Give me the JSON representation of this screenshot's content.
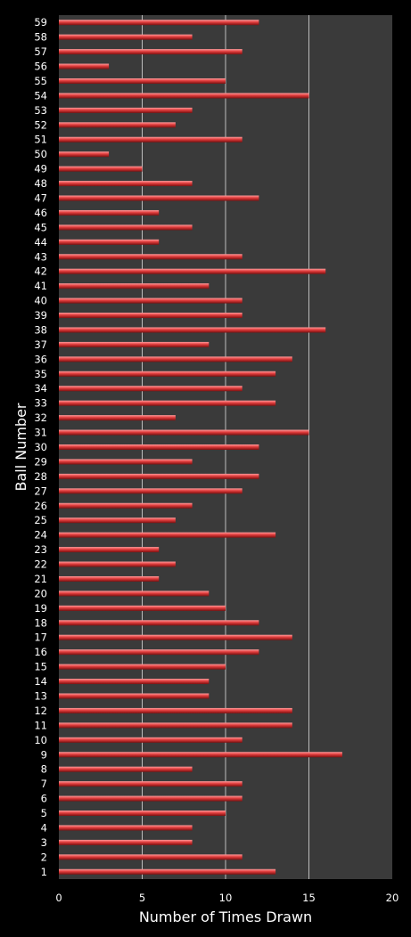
{
  "chart_data": {
    "type": "bar",
    "orientation": "horizontal",
    "title": "",
    "xlabel": "Number of Times Drawn",
    "ylabel": "Ball Number",
    "xlim": [
      0,
      20
    ],
    "x_ticks": [
      0,
      5,
      10,
      15,
      20
    ],
    "grid": true,
    "legend": "none",
    "categories": [
      "1",
      "2",
      "3",
      "4",
      "5",
      "6",
      "7",
      "8",
      "9",
      "10",
      "11",
      "12",
      "13",
      "14",
      "15",
      "16",
      "17",
      "18",
      "19",
      "20",
      "21",
      "22",
      "23",
      "24",
      "25",
      "26",
      "27",
      "28",
      "29",
      "30",
      "31",
      "32",
      "33",
      "34",
      "35",
      "36",
      "37",
      "38",
      "39",
      "40",
      "41",
      "42",
      "43",
      "44",
      "45",
      "46",
      "47",
      "48",
      "49",
      "50",
      "51",
      "52",
      "53",
      "54",
      "55",
      "56",
      "57",
      "58",
      "59"
    ],
    "values": [
      13,
      11,
      8,
      8,
      10,
      11,
      11,
      8,
      17,
      11,
      14,
      14,
      9,
      9,
      10,
      12,
      14,
      12,
      10,
      9,
      6,
      7,
      6,
      13,
      7,
      8,
      11,
      12,
      8,
      12,
      15,
      7,
      13,
      11,
      13,
      14,
      9,
      16,
      11,
      11,
      9,
      16,
      11,
      6,
      8,
      6,
      12,
      8,
      5,
      3,
      11,
      7,
      8,
      15,
      10,
      3,
      11,
      8,
      12
    ],
    "colors": {
      "bar": "#e03c3c",
      "bar_highlight": "#ff9b9b",
      "bar_shadow": "#7a1010",
      "plot_background": "#3a3a3a",
      "gridline": "#bdbdbd",
      "page_background": "#000000",
      "text": "#ffffff"
    }
  }
}
